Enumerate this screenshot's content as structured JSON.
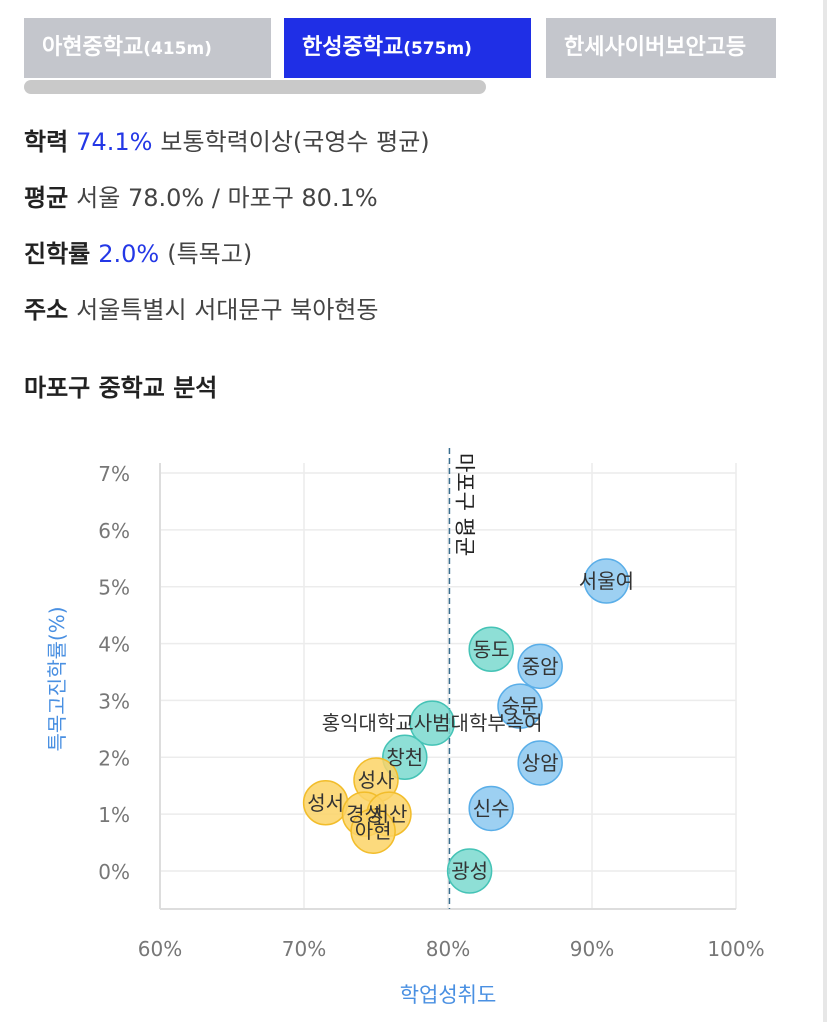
{
  "tabs": [
    {
      "name": "아현중학교",
      "distance": "(415m)",
      "active": false
    },
    {
      "name": "한성중학교",
      "distance": "(575m)",
      "active": true
    },
    {
      "name": "한세사이버보안고등",
      "distance": "",
      "active": false
    }
  ],
  "info": {
    "achievement": {
      "label": "학력",
      "value": "74.1%",
      "suffix": "보통학력이상(국영수 평균)"
    },
    "average": {
      "label": "평균",
      "text": "서울 78.0% / 마포구 80.1%"
    },
    "advancement": {
      "label": "진학률",
      "value": "2.0%",
      "suffix": "(특목고)"
    },
    "address": {
      "label": "주소",
      "text": "서울특별시 서대문구 북아현동"
    }
  },
  "section_title": "마포구 중학교 분석",
  "colors": {
    "accent": "#2438e6",
    "tab_active": "#1f2fe6",
    "tab_inactive": "#c4c6cc",
    "axis_label": "#4a90e2",
    "bubble_blue": "#8cc8f0",
    "bubble_teal": "#7ad9cf",
    "bubble_yellow": "#fbd466"
  },
  "chart_data": {
    "type": "scatter",
    "xlabel": "학업성취도",
    "ylabel": "특목고진학률(%)",
    "xlim": [
      60,
      100
    ],
    "ylim": [
      0,
      7
    ],
    "x_ticks": [
      "60%",
      "70%",
      "80%",
      "90%",
      "100%"
    ],
    "y_ticks": [
      "0%",
      "1%",
      "2%",
      "3%",
      "4%",
      "5%",
      "6%",
      "7%"
    ],
    "reference_line": {
      "x": 80.1,
      "label": "마포구 평균"
    },
    "points": [
      {
        "label": "서울여",
        "x": 91.0,
        "y": 5.1,
        "group": "blue"
      },
      {
        "label": "중암",
        "x": 86.4,
        "y": 3.6,
        "group": "blue"
      },
      {
        "label": "숭문",
        "x": 85.0,
        "y": 2.9,
        "group": "blue"
      },
      {
        "label": "상암",
        "x": 86.4,
        "y": 1.9,
        "group": "blue"
      },
      {
        "label": "신수",
        "x": 83.0,
        "y": 1.1,
        "group": "blue"
      },
      {
        "label": "동도",
        "x": 83.0,
        "y": 3.9,
        "group": "teal"
      },
      {
        "label": "홍익대학교사범대학부속여",
        "x": 78.9,
        "y": 2.6,
        "group": "teal"
      },
      {
        "label": "창천",
        "x": 77.0,
        "y": 2.0,
        "group": "teal"
      },
      {
        "label": "광성",
        "x": 81.5,
        "y": 0.0,
        "group": "teal"
      },
      {
        "label": "성사",
        "x": 75.0,
        "y": 1.6,
        "group": "yellow"
      },
      {
        "label": "성서",
        "x": 71.5,
        "y": 1.2,
        "group": "yellow"
      },
      {
        "label": "경성",
        "x": 74.2,
        "y": 1.0,
        "group": "yellow"
      },
      {
        "label": "서산",
        "x": 75.9,
        "y": 1.0,
        "group": "yellow"
      },
      {
        "label": "아현",
        "x": 74.8,
        "y": 0.7,
        "group": "yellow"
      }
    ]
  }
}
